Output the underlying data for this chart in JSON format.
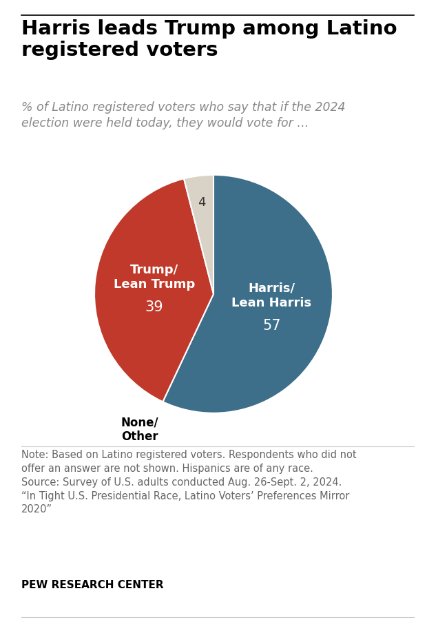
{
  "title": "Harris leads Trump among Latino\nregistered voters",
  "subtitle": "% of Latino registered voters who say that if the 2024\nelection were held today, they would vote for …",
  "slices": [
    57,
    39,
    4
  ],
  "labels": [
    "Harris/\nLean Harris",
    "Trump/\nLean Trump",
    "None/\nOther"
  ],
  "values_display": [
    "57",
    "39",
    "4"
  ],
  "colors": [
    "#3d6f8a",
    "#c0392b",
    "#d9d3c7"
  ],
  "label_colors": [
    "white",
    "white",
    "black"
  ],
  "value_colors": [
    "white",
    "white",
    "#333333"
  ],
  "startangle": 90,
  "note_text": "Note: Based on Latino registered voters. Respondents who did not\noffer an answer are not shown. Hispanics are of any race.\nSource: Survey of U.S. adults conducted Aug. 26-Sept. 2, 2024.\n“In Tight U.S. Presidential Race, Latino Voters’ Preferences Mirror\n2020”",
  "source_label": "PEW RESEARCH CENTER",
  "background_color": "#ffffff",
  "title_fontsize": 21,
  "subtitle_fontsize": 12.5,
  "label_fontsize": 13,
  "value_fontsize": 15,
  "note_fontsize": 10.5,
  "source_fontsize": 11
}
